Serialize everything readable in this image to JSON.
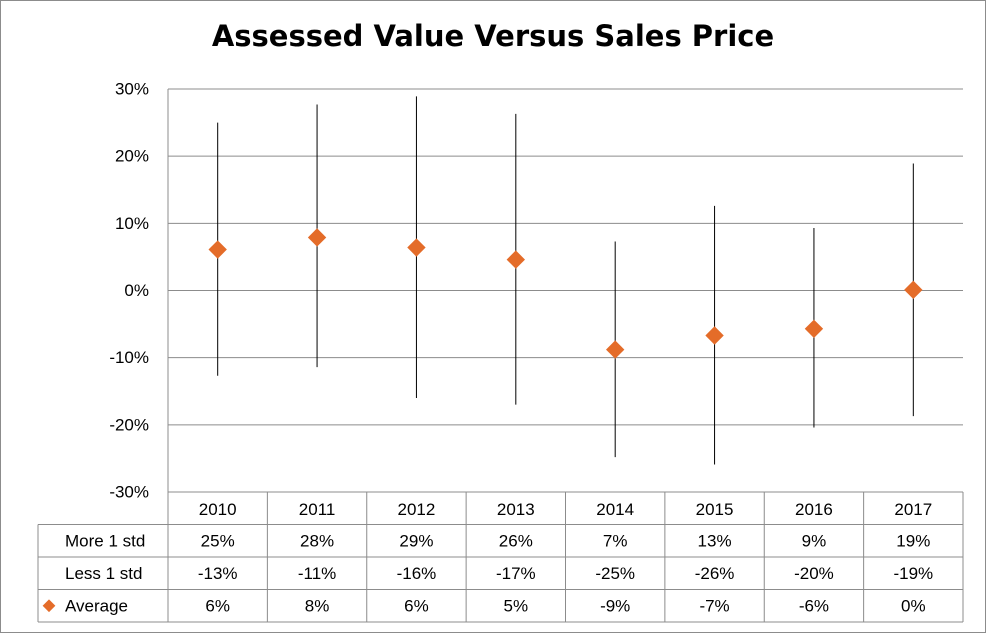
{
  "chart_data": {
    "type": "scatter",
    "title": "Assessed Value Versus Sales Price",
    "categories": [
      "2010",
      "2011",
      "2012",
      "2013",
      "2014",
      "2015",
      "2016",
      "2017"
    ],
    "ylim": [
      -30,
      30
    ],
    "y_ticks": [
      30,
      20,
      10,
      0,
      -10,
      -20,
      -30
    ],
    "y_tick_labels": [
      "30%",
      "20%",
      "10%",
      "0%",
      "-10%",
      "-20%",
      "-30%"
    ],
    "y_unit": "%",
    "grid": true,
    "legend": "data table below chart",
    "marker_color": "#e46c29",
    "series": [
      {
        "name": "More 1 std",
        "values": [
          25,
          28,
          29,
          26,
          7,
          13,
          9,
          19
        ],
        "labels": [
          "25%",
          "28%",
          "29%",
          "26%",
          "7%",
          "13%",
          "9%",
          "19%"
        ],
        "values_plotted": [
          25.0,
          27.7,
          28.9,
          26.3,
          7.3,
          12.6,
          9.3,
          18.9
        ]
      },
      {
        "name": "Less 1 std",
        "values": [
          -13,
          -11,
          -16,
          -17,
          -25,
          -26,
          -20,
          -19
        ],
        "labels": [
          "-13%",
          "-11%",
          "-16%",
          "-17%",
          "-25%",
          "-26%",
          "-20%",
          "-19%"
        ],
        "values_plotted": [
          -12.7,
          -11.4,
          -16.0,
          -17.0,
          -24.8,
          -25.9,
          -20.4,
          -18.7
        ]
      },
      {
        "name": "Average",
        "values": [
          6,
          8,
          6,
          5,
          -9,
          -7,
          -6,
          0
        ],
        "labels": [
          "6%",
          "8%",
          "6%",
          "5%",
          "-9%",
          "-7%",
          "-6%",
          "0%"
        ],
        "values_plotted": [
          6.1,
          7.9,
          6.4,
          4.6,
          -8.8,
          -6.7,
          -5.7,
          0.1
        ]
      }
    ]
  }
}
